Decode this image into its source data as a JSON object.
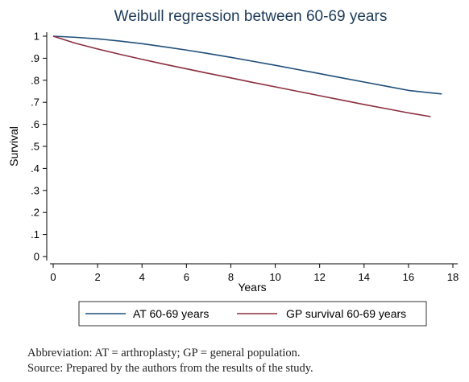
{
  "chart_data": {
    "type": "line",
    "title": "Weibull regression between 60-69 years",
    "xlabel": "Years",
    "ylabel": "Survival",
    "xlim": [
      0,
      18
    ],
    "ylim": [
      0,
      1
    ],
    "x_ticks": [
      "0",
      "2",
      "4",
      "6",
      "8",
      "10",
      "12",
      "14",
      "16",
      "18"
    ],
    "y_ticks": [
      "0",
      ".1",
      ".2",
      ".3",
      ".4",
      ".5",
      ".6",
      ".7",
      ".8",
      ".9",
      "1"
    ],
    "grid": false,
    "legend_position": "bottom",
    "series": [
      {
        "name": "AT 60-69 years",
        "color": "#1f4e79",
        "x": [
          0,
          1,
          2,
          3,
          4,
          5,
          6,
          7,
          8,
          9,
          10,
          11,
          12,
          13,
          14,
          15,
          16,
          17,
          17.5
        ],
        "y": [
          1.0,
          0.995,
          0.988,
          0.978,
          0.966,
          0.952,
          0.937,
          0.921,
          0.904,
          0.886,
          0.868,
          0.849,
          0.83,
          0.811,
          0.792,
          0.773,
          0.754,
          0.743,
          0.738
        ]
      },
      {
        "name": "GP survival 60-69 years",
        "color": "#8b2e3e",
        "x": [
          0,
          1,
          2,
          3,
          4,
          5,
          6,
          7,
          8,
          9,
          10,
          11,
          12,
          13,
          14,
          15,
          16,
          17
        ],
        "y": [
          1.0,
          0.968,
          0.942,
          0.918,
          0.895,
          0.873,
          0.852,
          0.831,
          0.811,
          0.79,
          0.77,
          0.75,
          0.73,
          0.71,
          0.69,
          0.671,
          0.652,
          0.635
        ]
      }
    ]
  },
  "caption": {
    "line1": "Abbreviation: AT = arthroplasty; GP = general population.",
    "line2": "Source: Prepared by the authors from the results of the study."
  }
}
